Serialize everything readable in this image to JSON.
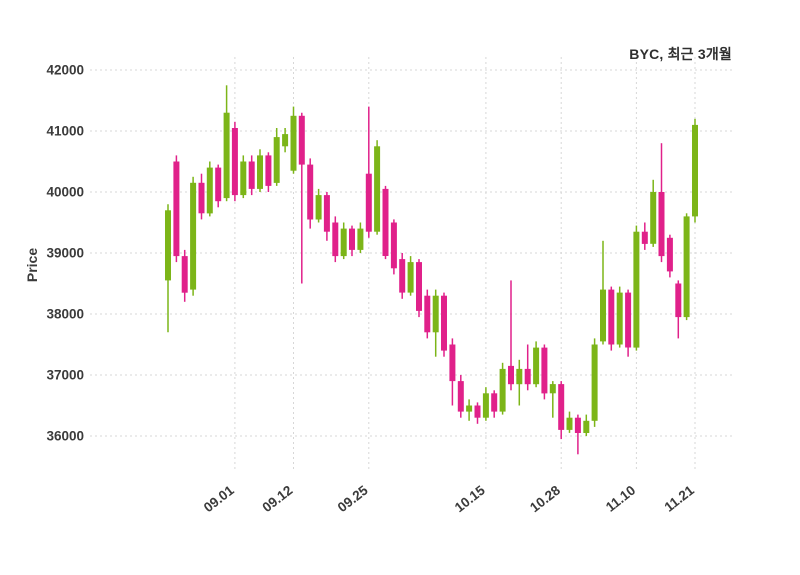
{
  "header": {
    "title": "BYC, 최근 3개월"
  },
  "chart_data": {
    "type": "candlestick",
    "title": "BYC, 최근 3개월",
    "ylabel": "Price",
    "legend": null,
    "grid": "dashed",
    "up_color": "#7CB518",
    "down_color": "#E0218A",
    "grid_color": "#d7d7d7",
    "tick_color": "#3b3b3b",
    "background_color": "#ffffff",
    "ylim": [
      35500,
      42250
    ],
    "yticks": [
      36000,
      37000,
      38000,
      39000,
      40000,
      41000,
      42000
    ],
    "xticks": [
      {
        "index": 8,
        "label": "09.01"
      },
      {
        "index": 15,
        "label": "09.12"
      },
      {
        "index": 24,
        "label": "09.25"
      },
      {
        "index": 38,
        "label": "10.15"
      },
      {
        "index": 47,
        "label": "10.28"
      },
      {
        "index": 56,
        "label": "11.10"
      },
      {
        "index": 63,
        "label": "11.21"
      }
    ],
    "ohlc_note": "each candle is [open, high, low, close]; close>=open renders green (up), close<open renders magenta (down)",
    "candles": [
      [
        38550,
        39800,
        37700,
        39700
      ],
      [
        40500,
        40600,
        38850,
        38950
      ],
      [
        38950,
        39050,
        38200,
        38350
      ],
      [
        38400,
        40250,
        38300,
        40150
      ],
      [
        40150,
        40300,
        39550,
        39650
      ],
      [
        39650,
        40500,
        39600,
        40400
      ],
      [
        40400,
        40450,
        39750,
        39850
      ],
      [
        39900,
        41750,
        39850,
        41300
      ],
      [
        41050,
        41150,
        39850,
        39950
      ],
      [
        39950,
        40600,
        39900,
        40500
      ],
      [
        40500,
        40600,
        39950,
        40050
      ],
      [
        40050,
        40700,
        40000,
        40600
      ],
      [
        40600,
        40650,
        40000,
        40100
      ],
      [
        40150,
        41050,
        40100,
        40900
      ],
      [
        40750,
        41050,
        40650,
        40950
      ],
      [
        40350,
        41400,
        40300,
        41250
      ],
      [
        41250,
        41300,
        38500,
        40450
      ],
      [
        40450,
        40550,
        39400,
        39550
      ],
      [
        39550,
        40050,
        39500,
        39950
      ],
      [
        39950,
        40000,
        39200,
        39350
      ],
      [
        39500,
        39600,
        38850,
        38950
      ],
      [
        38950,
        39500,
        38900,
        39400
      ],
      [
        39400,
        39450,
        38950,
        39050
      ],
      [
        39050,
        39500,
        39000,
        39400
      ],
      [
        40300,
        41400,
        39250,
        39350
      ],
      [
        39350,
        40850,
        39300,
        40750
      ],
      [
        40050,
        40100,
        38900,
        38950
      ],
      [
        39500,
        39550,
        38650,
        38750
      ],
      [
        38900,
        39000,
        38250,
        38350
      ],
      [
        38350,
        38950,
        38300,
        38850
      ],
      [
        38850,
        38900,
        37950,
        38050
      ],
      [
        38300,
        38400,
        37600,
        37700
      ],
      [
        37700,
        38400,
        37300,
        38300
      ],
      [
        38300,
        38350,
        37300,
        37400
      ],
      [
        37500,
        37600,
        36500,
        36900
      ],
      [
        36900,
        37000,
        36300,
        36400
      ],
      [
        36400,
        36600,
        36250,
        36500
      ],
      [
        36500,
        36550,
        36200,
        36300
      ],
      [
        36300,
        36800,
        36250,
        36700
      ],
      [
        36700,
        36750,
        36300,
        36400
      ],
      [
        36400,
        37200,
        36350,
        37100
      ],
      [
        37150,
        38550,
        36750,
        36850
      ],
      [
        36850,
        37250,
        36500,
        37100
      ],
      [
        37100,
        37500,
        36750,
        36850
      ],
      [
        36850,
        37550,
        36800,
        37450
      ],
      [
        37450,
        37500,
        36600,
        36700
      ],
      [
        36700,
        36900,
        36300,
        36850
      ],
      [
        36850,
        36900,
        35950,
        36100
      ],
      [
        36100,
        36400,
        36050,
        36300
      ],
      [
        36300,
        36350,
        35700,
        36050
      ],
      [
        36050,
        36350,
        36000,
        36250
      ],
      [
        36250,
        37600,
        36150,
        37500
      ],
      [
        37550,
        39200,
        37500,
        38400
      ],
      [
        38400,
        38450,
        37400,
        37500
      ],
      [
        37500,
        38450,
        37450,
        38350
      ],
      [
        38350,
        38400,
        37300,
        37450
      ],
      [
        37450,
        39450,
        37400,
        39350
      ],
      [
        39350,
        39500,
        39050,
        39150
      ],
      [
        39150,
        40200,
        39100,
        40000
      ],
      [
        40000,
        40800,
        38850,
        38950
      ],
      [
        39250,
        39300,
        38600,
        38700
      ],
      [
        38500,
        38550,
        37600,
        37950
      ],
      [
        37950,
        39650,
        37900,
        39600
      ],
      [
        39600,
        41200,
        39500,
        41100
      ]
    ]
  }
}
